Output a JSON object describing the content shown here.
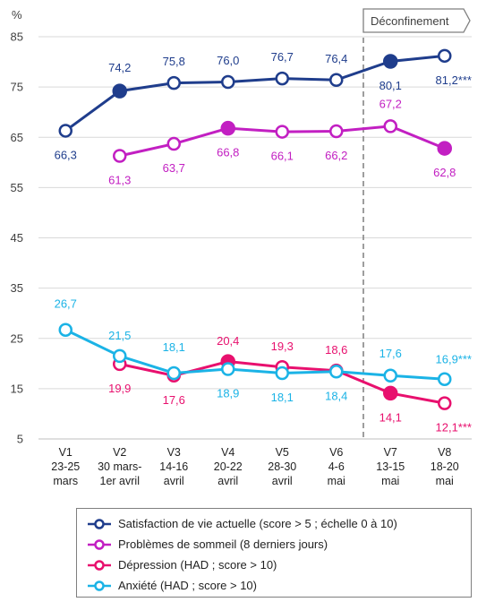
{
  "chart_data": {
    "type": "line",
    "ylabel": "%",
    "ylim": [
      5,
      85
    ],
    "yticks": [
      5,
      15,
      25,
      35,
      45,
      55,
      65,
      75,
      85
    ],
    "categories": [
      [
        "V1",
        "23-25",
        "mars"
      ],
      [
        "V2",
        "30 mars-",
        "1er avril"
      ],
      [
        "V3",
        "14-16",
        "avril"
      ],
      [
        "V4",
        "20-22",
        "avril"
      ],
      [
        "V5",
        "28-30",
        "avril"
      ],
      [
        "V6",
        "4-6",
        "mai"
      ],
      [
        "V7",
        "13-15",
        "mai"
      ],
      [
        "V8",
        "18-20",
        "mai"
      ]
    ],
    "annotation": {
      "text": "Déconfinement",
      "between": [
        "V6",
        "V7"
      ]
    },
    "series": [
      {
        "name": "Satisfaction de vie actuelle (score > 5 ; échelle 0 à 10)",
        "color": "#1f3d8c",
        "values": [
          66.3,
          74.2,
          75.8,
          76.0,
          76.7,
          76.4,
          80.1,
          81.2
        ],
        "labels": [
          "66,3",
          "74,2",
          "75,8",
          "76,0",
          "76,7",
          "76,4",
          "80,1",
          "81,2***"
        ],
        "filled": [
          false,
          true,
          false,
          false,
          false,
          false,
          true,
          false
        ]
      },
      {
        "name": "Problèmes de sommeil (8 derniers jours)",
        "color": "#c21fc2",
        "values": [
          null,
          61.3,
          63.7,
          66.8,
          66.1,
          66.2,
          67.2,
          62.8
        ],
        "labels": [
          null,
          "61,3",
          "63,7",
          "66,8",
          "66,1",
          "66,2",
          "67,2",
          "62,8"
        ],
        "filled": [
          false,
          false,
          false,
          true,
          false,
          false,
          false,
          true
        ]
      },
      {
        "name": "Dépression (HAD ; score > 10)",
        "color": "#e8106e",
        "values": [
          null,
          19.9,
          17.6,
          20.4,
          19.3,
          18.6,
          14.1,
          12.1
        ],
        "labels": [
          null,
          "19,9",
          "17,6",
          "20,4",
          "19,3",
          "18,6",
          "14,1",
          "12,1***"
        ],
        "filled": [
          false,
          false,
          false,
          true,
          false,
          false,
          true,
          false
        ]
      },
      {
        "name": "Anxiété (HAD ; score > 10)",
        "color": "#1bb3e6",
        "values": [
          26.7,
          21.5,
          18.1,
          18.9,
          18.1,
          18.4,
          17.6,
          16.9
        ],
        "labels": [
          "26,7",
          "21,5",
          "18,1",
          "18,9",
          "18,1",
          "18,4",
          "17,6",
          "16,9***"
        ],
        "filled": [
          false,
          false,
          false,
          false,
          false,
          false,
          false,
          false
        ]
      }
    ]
  }
}
